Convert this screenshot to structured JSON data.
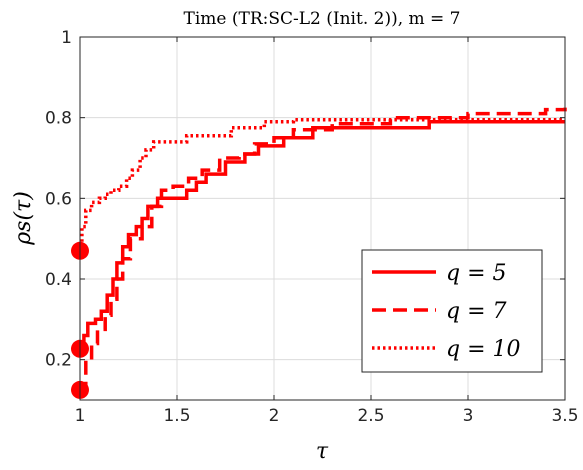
{
  "chart_data": {
    "type": "line",
    "title": "Time (TR:SC-L2 (Init. 2)), m = 7",
    "xlabel": "τ",
    "ylabel": "ρs(τ)",
    "xlim": [
      1,
      3.5
    ],
    "ylim": [
      0.1,
      1
    ],
    "xticks": [
      "1",
      "1.5",
      "2",
      "2.5",
      "3",
      "3.5"
    ],
    "yticks": [
      "0.2",
      "0.4",
      "0.6",
      "0.8",
      "1"
    ],
    "grid": true,
    "legend_position": "bottom-right",
    "color": "#ff0000",
    "series": [
      {
        "name": "q = 5",
        "style": "solid",
        "start_marker": 0.227,
        "points": [
          [
            1,
            0.227
          ],
          [
            1.02,
            0.26
          ],
          [
            1.04,
            0.29
          ],
          [
            1.08,
            0.3
          ],
          [
            1.11,
            0.32
          ],
          [
            1.14,
            0.36
          ],
          [
            1.17,
            0.4
          ],
          [
            1.19,
            0.44
          ],
          [
            1.22,
            0.48
          ],
          [
            1.25,
            0.51
          ],
          [
            1.29,
            0.53
          ],
          [
            1.32,
            0.55
          ],
          [
            1.35,
            0.58
          ],
          [
            1.4,
            0.6
          ],
          [
            1.55,
            0.62
          ],
          [
            1.6,
            0.64
          ],
          [
            1.65,
            0.66
          ],
          [
            1.75,
            0.69
          ],
          [
            1.85,
            0.71
          ],
          [
            1.92,
            0.73
          ],
          [
            2.05,
            0.75
          ],
          [
            2.2,
            0.775
          ],
          [
            2.8,
            0.79
          ],
          [
            3.5,
            0.79
          ]
        ]
      },
      {
        "name": "q = 7",
        "style": "dashed",
        "start_marker": 0.125,
        "points": [
          [
            1,
            0.125
          ],
          [
            1.03,
            0.2
          ],
          [
            1.06,
            0.24
          ],
          [
            1.09,
            0.275
          ],
          [
            1.13,
            0.31
          ],
          [
            1.16,
            0.35
          ],
          [
            1.19,
            0.4
          ],
          [
            1.22,
            0.45
          ],
          [
            1.26,
            0.5
          ],
          [
            1.32,
            0.53
          ],
          [
            1.37,
            0.58
          ],
          [
            1.42,
            0.62
          ],
          [
            1.48,
            0.63
          ],
          [
            1.56,
            0.65
          ],
          [
            1.63,
            0.67
          ],
          [
            1.72,
            0.7
          ],
          [
            1.82,
            0.71
          ],
          [
            1.9,
            0.735
          ],
          [
            2.0,
            0.75
          ],
          [
            2.1,
            0.77
          ],
          [
            2.3,
            0.785
          ],
          [
            2.6,
            0.8
          ],
          [
            3.0,
            0.81
          ],
          [
            3.4,
            0.82
          ],
          [
            3.5,
            0.825
          ]
        ]
      },
      {
        "name": "q = 10",
        "style": "dotted",
        "start_marker": 0.47,
        "points": [
          [
            1,
            0.47
          ],
          [
            1.01,
            0.53
          ],
          [
            1.03,
            0.57
          ],
          [
            1.06,
            0.59
          ],
          [
            1.1,
            0.6
          ],
          [
            1.13,
            0.61
          ],
          [
            1.16,
            0.62
          ],
          [
            1.2,
            0.63
          ],
          [
            1.24,
            0.65
          ],
          [
            1.27,
            0.67
          ],
          [
            1.31,
            0.7
          ],
          [
            1.34,
            0.72
          ],
          [
            1.38,
            0.74
          ],
          [
            1.55,
            0.755
          ],
          [
            1.78,
            0.775
          ],
          [
            1.95,
            0.79
          ],
          [
            2.1,
            0.795
          ],
          [
            3.5,
            0.795
          ]
        ]
      }
    ]
  }
}
